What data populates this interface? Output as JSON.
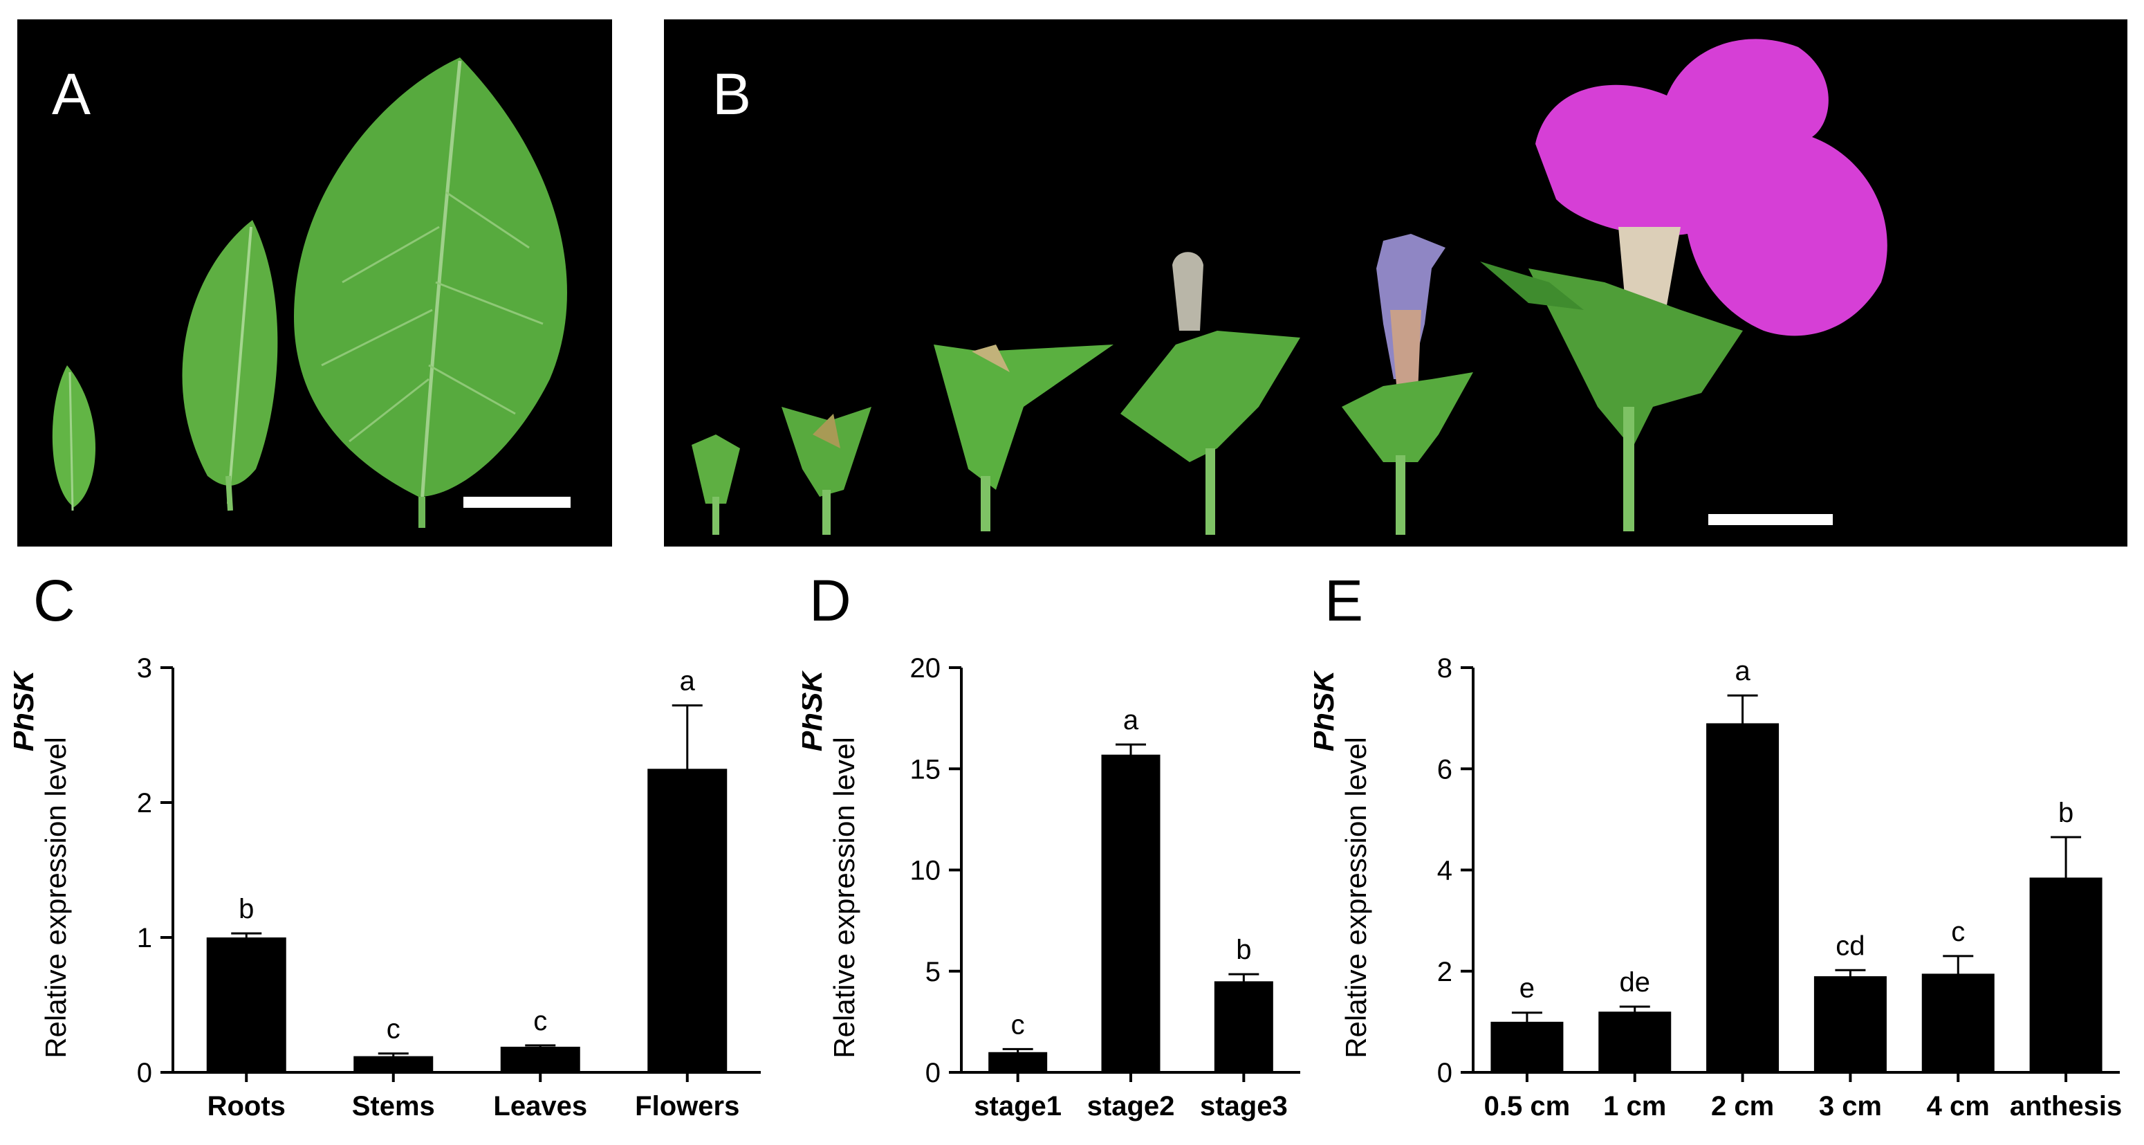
{
  "panels": {
    "A": "A",
    "B": "B",
    "C": "C",
    "D": "D",
    "E": "E"
  },
  "colors": {
    "leaf": "#5fb042",
    "leaf_dark": "#3f8c2e",
    "petal": "#d63fd6",
    "bud": "#8f86c4",
    "bar": "#000000",
    "scale_bar": "#ffffff"
  },
  "chart_data": [
    {
      "panel": "C",
      "type": "bar",
      "ylabel_italic": "PhSK",
      "ylabel": "Relative expression level",
      "ylim": [
        0,
        3
      ],
      "yticks": [
        0,
        1,
        2,
        3
      ],
      "categories": [
        "Roots",
        "Stems",
        "Leaves",
        "Flowers"
      ],
      "values": [
        1.0,
        0.12,
        0.19,
        2.25
      ],
      "errors": [
        0.03,
        0.02,
        0.01,
        0.47
      ],
      "letters": [
        "b",
        "c",
        "c",
        "a"
      ]
    },
    {
      "panel": "D",
      "type": "bar",
      "ylabel_italic": "PhSK",
      "ylabel": "Relative expression level",
      "ylim": [
        0,
        20
      ],
      "yticks": [
        0,
        5,
        10,
        15,
        20
      ],
      "categories": [
        "stage1",
        "stage2",
        "stage3"
      ],
      "values": [
        1.0,
        15.7,
        4.5
      ],
      "errors": [
        0.15,
        0.5,
        0.35
      ],
      "letters": [
        "c",
        "a",
        "b"
      ]
    },
    {
      "panel": "E",
      "type": "bar",
      "ylabel_italic": "PhSK",
      "ylabel": "Relative expression level",
      "ylim": [
        0,
        8
      ],
      "yticks": [
        0,
        2,
        4,
        6,
        8
      ],
      "categories": [
        "0.5 cm",
        "1 cm",
        "2 cm",
        "3 cm",
        "4 cm",
        "anthesis"
      ],
      "values": [
        1.0,
        1.2,
        6.9,
        1.9,
        1.95,
        3.85
      ],
      "errors": [
        0.18,
        0.1,
        0.55,
        0.12,
        0.35,
        0.8
      ],
      "letters": [
        "e",
        "de",
        "a",
        "cd",
        "c",
        "b"
      ]
    }
  ]
}
